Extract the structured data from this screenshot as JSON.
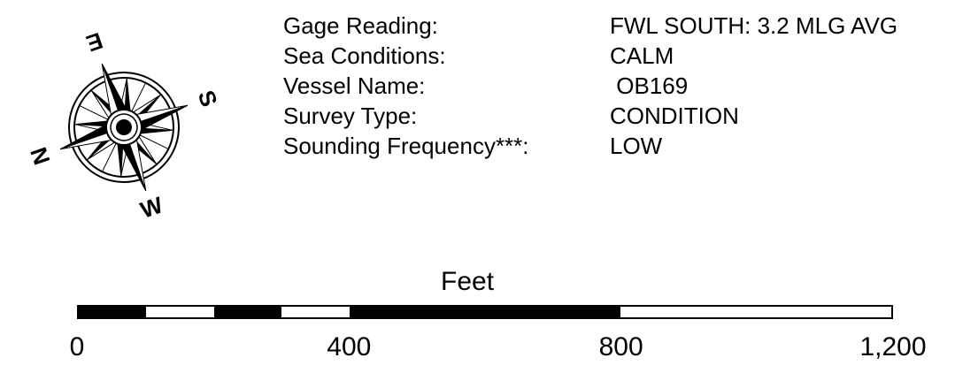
{
  "compass": {
    "north_letter": "N",
    "east_letter": "E",
    "south_letter": "S",
    "west_letter": "W"
  },
  "survey_info": {
    "rows": [
      {
        "label": "Gage Reading:",
        "value": "FWL SOUTH: 3.2 MLG AVG"
      },
      {
        "label": "Sea Conditions:",
        "value": "CALM"
      },
      {
        "label": "Vessel Name:",
        "value": " OB169"
      },
      {
        "label": "Survey Type:",
        "value": "CONDITION"
      },
      {
        "label": "Sounding Frequency***:",
        "value": "LOW"
      }
    ]
  },
  "scale_bar": {
    "unit_label": "Feet",
    "max_value": 1200,
    "tick_labels": [
      "0",
      "400",
      "800",
      "1,200"
    ],
    "tick_values": [
      0,
      400,
      800,
      1200
    ],
    "segments": [
      {
        "from": 0,
        "to": 100,
        "fill": "black"
      },
      {
        "from": 100,
        "to": 200,
        "fill": "white"
      },
      {
        "from": 200,
        "to": 300,
        "fill": "black"
      },
      {
        "from": 300,
        "to": 400,
        "fill": "white"
      },
      {
        "from": 400,
        "to": 800,
        "fill": "black"
      },
      {
        "from": 800,
        "to": 1200,
        "fill": "white"
      }
    ]
  }
}
